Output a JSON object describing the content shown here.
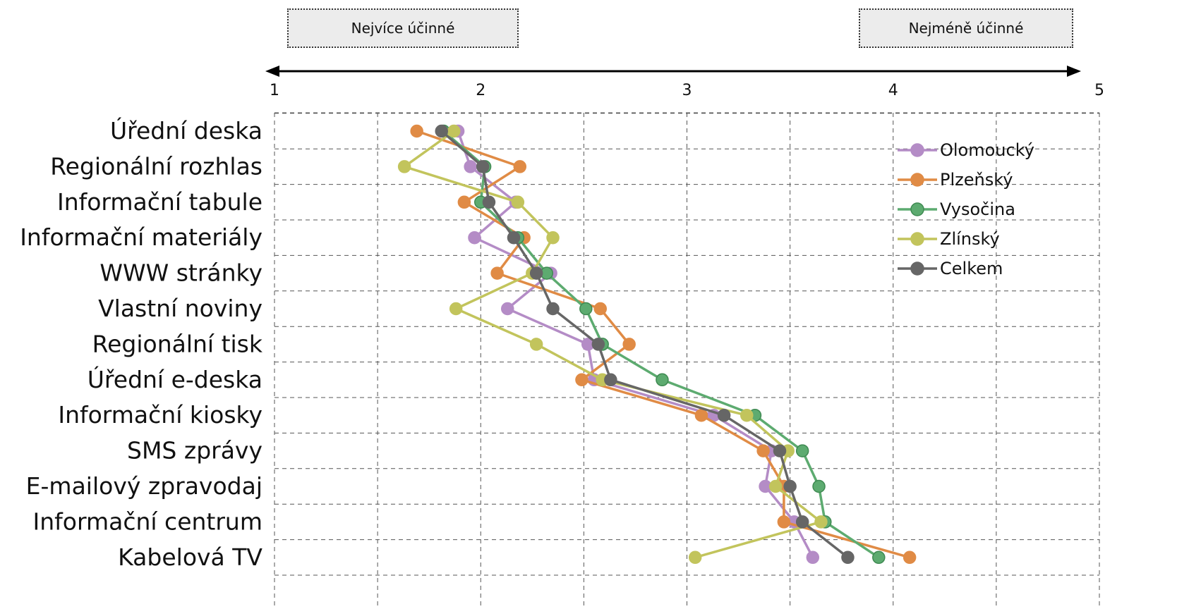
{
  "header": {
    "most_effective": "Nejvíce účinné",
    "least_effective": "Nejméně účinné"
  },
  "chart_data": {
    "type": "line",
    "orientation": "horizontal",
    "xlim": [
      1,
      5
    ],
    "x_ticks": [
      "1",
      "2",
      "3",
      "4",
      "5"
    ],
    "grid": true,
    "legend_position": "top-right",
    "categories": [
      "Úřední deska",
      "Regionální rozhlas",
      "Informační tabule",
      "Informační materiály",
      "WWW stránky",
      "Vlastní noviny",
      "Regionální tisk",
      "Úřední e-deska",
      "Informační kiosky",
      "SMS zprávy",
      "E-mailový zpravodaj",
      "Informační centrum",
      "Kabelová TV"
    ],
    "series": [
      {
        "name": "Olomoucký",
        "color": "#b48cc6",
        "values": [
          1.89,
          1.95,
          2.17,
          1.97,
          2.34,
          2.13,
          2.52,
          2.55,
          3.13,
          3.41,
          3.38,
          3.52,
          3.61
        ]
      },
      {
        "name": "Plzeňský",
        "color": "#e08b45",
        "values": [
          1.69,
          2.19,
          1.92,
          2.21,
          2.08,
          2.58,
          2.72,
          2.49,
          3.07,
          3.37,
          3.47,
          3.47,
          4.08
        ]
      },
      {
        "name": "Vysočina",
        "color": "#5dab70",
        "values": [
          1.82,
          2.02,
          2.0,
          2.18,
          2.32,
          2.51,
          2.59,
          2.88,
          3.33,
          3.56,
          3.64,
          3.67,
          3.93
        ]
      },
      {
        "name": "Zlínský",
        "color": "#c2c45c",
        "values": [
          1.87,
          1.63,
          2.18,
          2.35,
          2.25,
          1.88,
          2.27,
          2.59,
          3.29,
          3.49,
          3.43,
          3.65,
          3.04
        ]
      },
      {
        "name": "Celkem",
        "color": "#666666",
        "values": [
          1.81,
          2.01,
          2.04,
          2.16,
          2.27,
          2.35,
          2.57,
          2.63,
          3.18,
          3.45,
          3.5,
          3.56,
          3.78
        ]
      }
    ]
  }
}
